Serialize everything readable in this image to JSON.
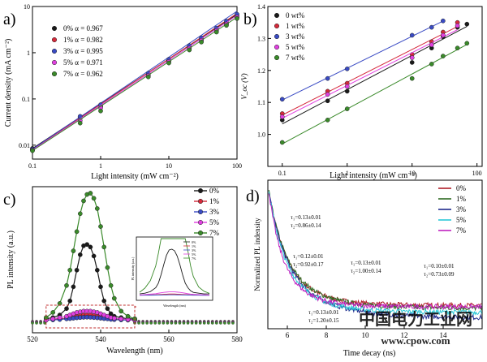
{
  "chart_data": [
    {
      "panel": "a)",
      "type": "line",
      "xlabel": "Light intensity (mW cm⁻²)",
      "ylabel": "Current density (mA cm⁻²)",
      "xscale": "log",
      "yscale": "log",
      "xlim": [
        0.1,
        100
      ],
      "ylim": [
        0.005,
        10
      ],
      "xticks": [
        "0.1",
        "1",
        "10",
        "100"
      ],
      "yticks": [
        "0.01",
        "0.1",
        "1",
        "10"
      ],
      "legend_position": "top-left",
      "x": [
        0.1,
        0.5,
        1,
        5,
        10,
        20,
        30,
        50,
        70,
        100
      ],
      "series": [
        {
          "name": "0% α = 0.967",
          "color": "#1a1a1a",
          "slope": 0.967,
          "values": [
            0.0085,
            0.04,
            0.068,
            0.33,
            0.66,
            1.28,
            1.85,
            3.0,
            4.2,
            5.9
          ]
        },
        {
          "name": "1% α = 0.982",
          "color": "#d42a3b",
          "slope": 0.982,
          "values": [
            0.008,
            0.038,
            0.07,
            0.34,
            0.68,
            1.32,
            1.95,
            3.2,
            4.4,
            6.3
          ]
        },
        {
          "name": "3% α = 0.995",
          "color": "#3a4bc4",
          "slope": 0.995,
          "values": [
            0.0082,
            0.042,
            0.075,
            0.36,
            0.72,
            1.42,
            2.1,
            3.4,
            4.8,
            6.8
          ]
        },
        {
          "name": "5% α = 0.971",
          "color": "#e040e0",
          "slope": 0.971,
          "values": [
            0.0078,
            0.034,
            0.064,
            0.32,
            0.64,
            1.25,
            1.85,
            3.0,
            4.2,
            5.9
          ]
        },
        {
          "name": "7% α = 0.962",
          "color": "#3a8a2a",
          "slope": 0.962,
          "values": [
            0.0076,
            0.03,
            0.055,
            0.3,
            0.6,
            1.15,
            1.7,
            2.8,
            3.9,
            5.5
          ]
        }
      ]
    },
    {
      "panel": "b)",
      "type": "line",
      "xlabel": "Light intensity (mW cm⁻²)",
      "ylabel": "V_oc (V)",
      "xscale": "log",
      "xlim": [
        0.06,
        120
      ],
      "ylim": [
        0.9,
        1.4
      ],
      "xticks": [
        "0.1",
        "1",
        "10",
        "100"
      ],
      "yticks": [
        "1.0",
        "1.1",
        "1.2",
        "1.3",
        "1.4"
      ],
      "legend_position": "top-left",
      "x": [
        0.1,
        0.5,
        1,
        10,
        20,
        30,
        50,
        70
      ],
      "series": [
        {
          "name": "0 wt%",
          "color": "#1a1a1a",
          "values": [
            1.045,
            1.105,
            1.135,
            1.225,
            1.27,
            1.305,
            1.335,
            1.345
          ]
        },
        {
          "name": "1 wt%",
          "color": "#d42a3b",
          "values": [
            1.065,
            1.135,
            1.16,
            1.25,
            1.29,
            1.32,
            1.35,
            null
          ]
        },
        {
          "name": "3 wt%",
          "color": "#3a4bc4",
          "values": [
            1.11,
            1.175,
            1.205,
            1.31,
            1.335,
            1.355,
            null,
            null
          ]
        },
        {
          "name": "5 wt%",
          "color": "#e040e0",
          "values": [
            1.055,
            1.125,
            1.15,
            1.24,
            1.28,
            1.31,
            1.34,
            null
          ]
        },
        {
          "name": "7 wt%",
          "color": "#3a8a2a",
          "values": [
            0.975,
            1.045,
            1.08,
            1.175,
            1.22,
            1.245,
            1.27,
            1.285
          ]
        }
      ]
    },
    {
      "panel": "c)",
      "type": "line",
      "xlabel": "Wavelength (nm)",
      "ylabel": "PL intensity (a.u.)",
      "xlim": [
        520,
        580
      ],
      "xticks": [
        "520",
        "540",
        "560",
        "580"
      ],
      "legend_position": "top-right",
      "inset": {
        "xlabel": "Wavelength (nm)",
        "ylabel": "PL intensity (a.u.)"
      },
      "x": [
        524,
        526,
        528,
        530,
        531,
        532,
        533,
        534,
        535,
        536,
        537,
        538,
        539,
        540,
        541,
        542,
        543,
        544,
        546,
        548,
        550
      ],
      "series": [
        {
          "name": "0%",
          "color": "#1a1a1a",
          "values": [
            0.02,
            0.03,
            0.05,
            0.1,
            0.16,
            0.27,
            0.4,
            0.52,
            0.59,
            0.6,
            0.58,
            0.51,
            0.4,
            0.27,
            0.16,
            0.1,
            0.06,
            0.04,
            0.03,
            0.02,
            0.02
          ]
        },
        {
          "name": "1%",
          "color": "#d42a3b",
          "values": [
            0.01,
            0.015,
            0.02,
            0.025,
            0.03,
            0.035,
            0.04,
            0.045,
            0.05,
            0.05,
            0.05,
            0.045,
            0.04,
            0.035,
            0.03,
            0.025,
            0.02,
            0.018,
            0.015,
            0.012,
            0.01
          ]
        },
        {
          "name": "3%",
          "color": "#3a4bc4",
          "values": [
            0.01,
            0.012,
            0.015,
            0.02,
            0.022,
            0.025,
            0.028,
            0.03,
            0.032,
            0.033,
            0.032,
            0.03,
            0.028,
            0.025,
            0.022,
            0.02,
            0.016,
            0.014,
            0.012,
            0.01,
            0.01
          ]
        },
        {
          "name": "5%",
          "color": "#e040e0",
          "values": [
            0.01,
            0.02,
            0.03,
            0.04,
            0.05,
            0.06,
            0.07,
            0.075,
            0.08,
            0.08,
            0.08,
            0.075,
            0.07,
            0.06,
            0.05,
            0.04,
            0.03,
            0.025,
            0.02,
            0.015,
            0.01
          ]
        },
        {
          "name": "7%",
          "color": "#3a8a2a",
          "values": [
            0.03,
            0.07,
            0.14,
            0.28,
            0.4,
            0.55,
            0.7,
            0.84,
            0.94,
            0.99,
            1.0,
            0.96,
            0.88,
            0.74,
            0.58,
            0.42,
            0.28,
            0.18,
            0.08,
            0.04,
            0.02
          ]
        }
      ]
    },
    {
      "panel": "d)",
      "type": "line",
      "xlabel": "Time decay (ns)",
      "ylabel": "Normalized PL indensity",
      "xlim": [
        5,
        16
      ],
      "xticks": [
        "6",
        "8",
        "10",
        "12",
        "14"
      ],
      "legend_position": "top-right",
      "annotations": [
        {
          "lines": [
            "τ₁=0.13±0.01",
            "τ₂=0.86±0.14"
          ],
          "color": "#c0303a"
        },
        {
          "lines": [
            "τ₁=0.12±0.01",
            "τ₂=0.92±0.17"
          ],
          "color": "#22b8c8"
        },
        {
          "lines": [
            "τ₁=0.13±0.01",
            "τ₂=1.00±0.14"
          ],
          "color": "#3a6a2a"
        },
        {
          "lines": [
            "τ₁=0.13±0.01",
            "τ₂=1.20±0.15"
          ],
          "color": "#1a2a8a"
        },
        {
          "lines": [
            "τ₁=0.10±0.01",
            "τ₂=0.73±0.09"
          ],
          "color": "#c020c0"
        }
      ],
      "series": [
        {
          "name": "0%",
          "color": "#b01e28",
          "t1": 0.13,
          "t2": 0.86,
          "floor": 0.17
        },
        {
          "name": "1%",
          "color": "#2f6b22",
          "t1": 0.13,
          "t2": 1.0,
          "floor": 0.15
        },
        {
          "name": "3%",
          "color": "#1f2a8c",
          "t1": 0.13,
          "t2": 1.2,
          "floor": 0.08
        },
        {
          "name": "5%",
          "color": "#2ac8d8",
          "t1": 0.12,
          "t2": 0.92,
          "floor": 0.12
        },
        {
          "name": "7%",
          "color": "#c020c0",
          "t1": 0.1,
          "t2": 0.73,
          "floor": 0.16
        }
      ]
    }
  ],
  "watermark": {
    "title": "中国电力工业网",
    "url": "www.cpow.com"
  }
}
